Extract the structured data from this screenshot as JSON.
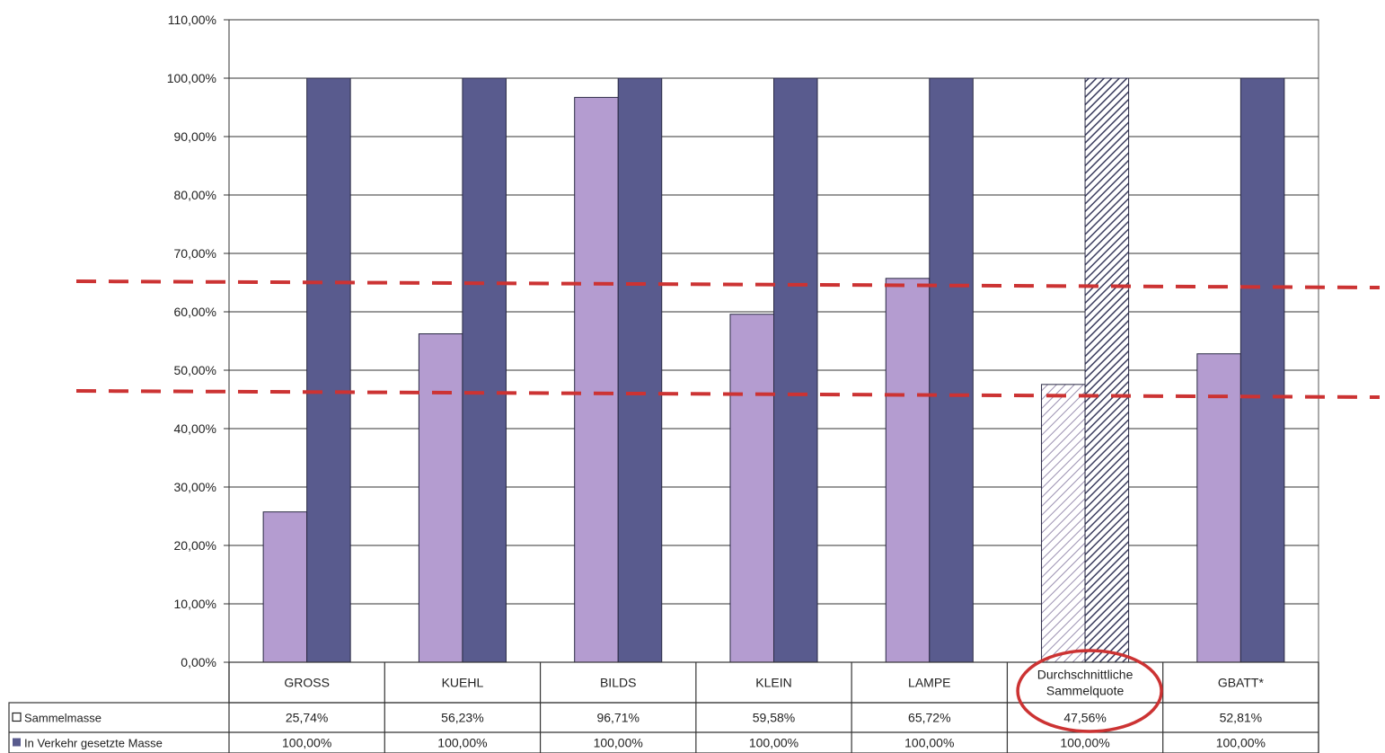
{
  "chart_data": {
    "type": "bar",
    "categories": [
      "GROSS",
      "KUEHL",
      "BILDS",
      "KLEIN",
      "LAMPE",
      "Durchschnittliche\nSammelquote",
      "GBATT*"
    ],
    "series": [
      {
        "name": "Sammelmasse",
        "values": [
          25.74,
          56.23,
          96.71,
          59.58,
          65.72,
          47.56,
          52.81
        ],
        "labels": [
          "25,74%",
          "56,23%",
          "96,71%",
          "59,58%",
          "65,72%",
          "47,56%",
          "52,81%"
        ],
        "color": "#b49cd0"
      },
      {
        "name": "In Verkehr gesetzte Masse",
        "values": [
          100,
          100,
          100,
          100,
          100,
          100,
          100
        ],
        "labels": [
          "100,00%",
          "100,00%",
          "100,00%",
          "100,00%",
          "100,00%",
          "100,00%",
          "100,00%"
        ],
        "color": "#595b8e"
      }
    ],
    "highlighted_category": "Durchschnittliche\nSammelquote",
    "ylim": [
      0,
      110
    ],
    "yticks": [
      "0,00%",
      "10,00%",
      "20,00%",
      "30,00%",
      "40,00%",
      "50,00%",
      "60,00%",
      "70,00%",
      "80,00%",
      "90,00%",
      "100,00%",
      "110,00%"
    ],
    "reference_lines": [
      65,
      45
    ],
    "reference_line_color": "#cc3333",
    "grid": true,
    "legend_placement": "data table, left"
  }
}
